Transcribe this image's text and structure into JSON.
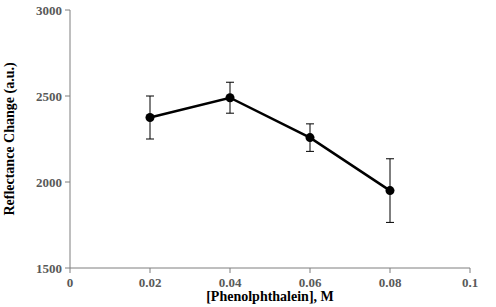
{
  "chart_data": {
    "type": "line",
    "x_label": "[Phenolphthalein], M",
    "y_label": "Reflectance Change (a.u.)",
    "x": [
      0.02,
      0.04,
      0.06,
      0.08
    ],
    "values": [
      2375,
      2490,
      2258,
      1950
    ],
    "error": [
      125,
      90,
      80,
      185
    ],
    "color": "#000000",
    "marker": "circle",
    "line_style": "solid",
    "xlim": [
      0,
      0.1
    ],
    "ylim": [
      1500,
      3000
    ],
    "xticks": [
      0,
      0.02,
      0.04,
      0.06,
      0.08,
      0.1
    ],
    "yticks": [
      1500,
      2000,
      2500,
      3000
    ],
    "grid": false
  }
}
